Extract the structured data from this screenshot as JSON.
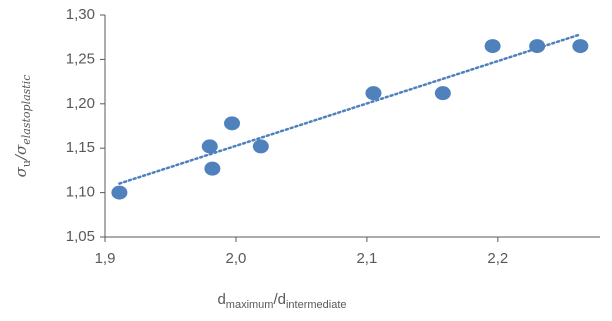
{
  "chart_data": {
    "type": "scatter",
    "xlabel": [
      "d",
      "maximum",
      "/d",
      "intermediate"
    ],
    "ylabel": [
      "σ",
      "u",
      "/σ",
      "elastoplastic"
    ],
    "series": [
      {
        "color": "#4f81bd",
        "x": [
          1.911,
          1.98,
          1.982,
          1.997,
          2.019,
          2.105,
          2.158,
          2.196,
          2.23,
          2.263
        ],
        "values": [
          1.1,
          1.152,
          1.127,
          1.178,
          1.152,
          1.212,
          1.212,
          1.265,
          1.265,
          1.265
        ]
      }
    ],
    "trendline": "linear",
    "xlim": [
      1.9,
      2.278
    ],
    "ylim": [
      1.05,
      1.3
    ],
    "xticks": [
      {
        "value": 1.9,
        "label": "1,9"
      },
      {
        "value": 2.0,
        "label": "2,0"
      },
      {
        "value": 2.1,
        "label": "2,1"
      },
      {
        "value": 2.2,
        "label": "2,2"
      }
    ],
    "yticks": [
      {
        "value": 1.05,
        "label": "1,05"
      },
      {
        "value": 1.1,
        "label": "1,10"
      },
      {
        "value": 1.15,
        "label": "1,15"
      },
      {
        "value": 1.2,
        "label": "1,20"
      },
      {
        "value": 1.25,
        "label": "1,25"
      },
      {
        "value": 1.3,
        "label": "1,30"
      }
    ]
  }
}
